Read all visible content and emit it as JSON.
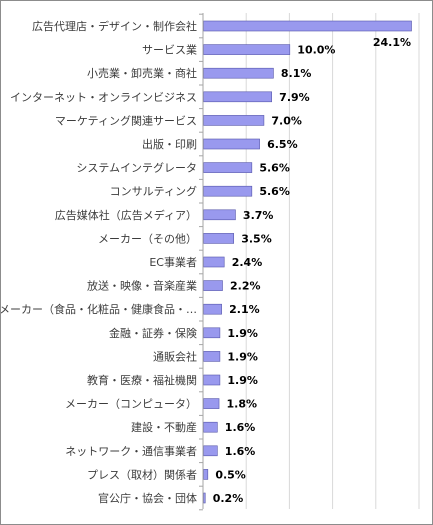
{
  "chart_data": {
    "type": "bar",
    "orientation": "horizontal",
    "categories": [
      "広告代理店・デザイン・制作会社",
      "サービス業",
      "小売業・卸売業・商社",
      "インターネット・オンラインビジネス",
      "マーケティング関連サービス",
      "出版・印刷",
      "システムインテグレータ",
      "コンサルティング",
      "広告媒体社（広告メディア）",
      "メーカー（その他）",
      "EC事業者",
      "放送・映像・音楽産業",
      "メーカー（食品・化粧品・健康食品・…",
      "金融・証券・保険",
      "通販会社",
      "教育・医療・福祉機関",
      "メーカー（コンピュータ）",
      "建設・不動産",
      "ネットワーク・通信事業者",
      "プレス（取材）関係者",
      "官公庁・協会・団体"
    ],
    "values": [
      24.1,
      10.0,
      8.1,
      7.9,
      7.0,
      6.5,
      5.6,
      5.6,
      3.7,
      3.5,
      2.4,
      2.2,
      2.1,
      1.9,
      1.9,
      1.9,
      1.8,
      1.6,
      1.6,
      0.5,
      0.2
    ],
    "value_labels": [
      "24.1%",
      "10.0%",
      "8.1%",
      "7.9%",
      "7.0%",
      "6.5%",
      "5.6%",
      "5.6%",
      "3.7%",
      "3.5%",
      "2.4%",
      "2.2%",
      "2.1%",
      "1.9%",
      "1.9%",
      "1.9%",
      "1.8%",
      "1.6%",
      "1.6%",
      "0.5%",
      "0.2%"
    ],
    "xlim": [
      0,
      24.1
    ],
    "grid": true,
    "legend": "none"
  },
  "colors": {
    "bar_fill": "#9999ee",
    "bar_stroke": "#5555aa",
    "grid": "#d9d9d9",
    "axis": "#a6a6a6",
    "plot_background": "#ffffff"
  }
}
